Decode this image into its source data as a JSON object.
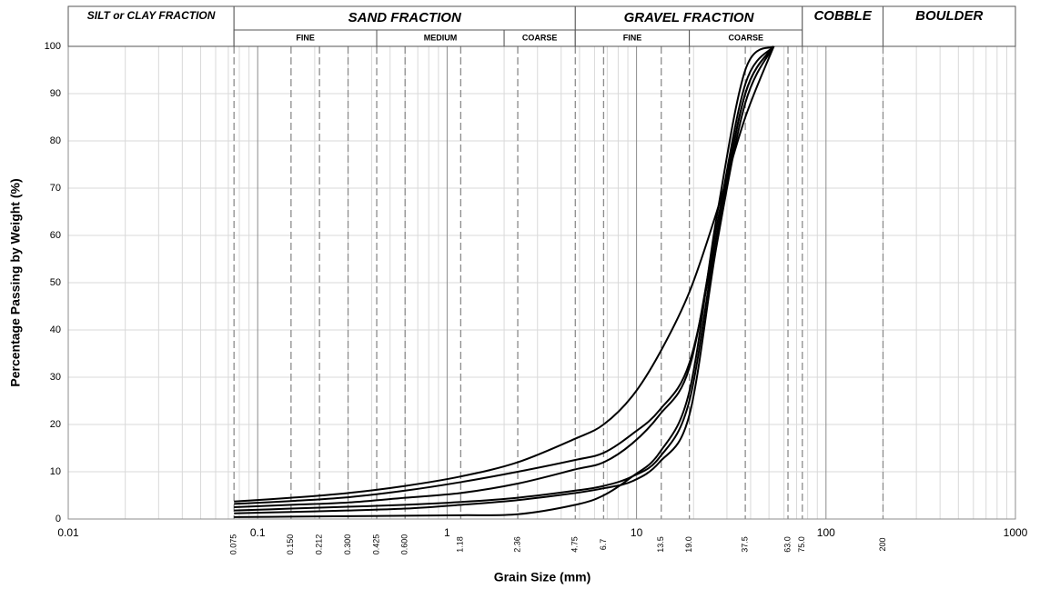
{
  "chart_data": {
    "type": "line",
    "x_label": "Grain Size (mm)",
    "y_label": "Percentage Passing by Weight (%)",
    "log_x": true,
    "grid": true,
    "color": "#000000",
    "xlim": [
      0.01,
      1000
    ],
    "xticks": [
      0.01,
      0.1,
      1,
      10,
      100,
      1000
    ],
    "ylim": [
      0,
      100
    ],
    "yticks": [
      0,
      10,
      20,
      30,
      40,
      50,
      60,
      70,
      80,
      90,
      100
    ],
    "sieve_sizes": [
      0.075,
      {
        "value": 0.15,
        "label": "0.150"
      },
      0.212,
      {
        "value": 0.3,
        "label": "0.300"
      },
      0.425,
      {
        "value": 0.6,
        "label": "0.600"
      },
      1.18,
      2.36,
      4.75,
      6.7,
      13.5,
      {
        "value": 19,
        "label": "19.0"
      },
      37.5,
      {
        "value": 63,
        "label": "63.0"
      },
      {
        "value": 75,
        "label": "75.0"
      },
      200
    ],
    "fractions": [
      {
        "label": "SILT or CLAY FRACTION",
        "range": [
          0.01,
          0.075
        ]
      },
      {
        "label": "SAND FRACTION",
        "range": [
          0.075,
          4.75
        ],
        "parts": [
          {
            "label": "FINE",
            "range": [
              0.075,
              0.425
            ]
          },
          {
            "label": "MEDIUM",
            "range": [
              0.425,
              2
            ]
          },
          {
            "label": "COARSE",
            "range": [
              2,
              4.75
            ]
          }
        ]
      },
      {
        "label": "GRAVEL FRACTION",
        "range": [
          4.75,
          75
        ],
        "parts": [
          {
            "label": "FINE",
            "range": [
              4.75,
              19
            ]
          },
          {
            "label": "COARSE",
            "range": [
              19,
              75
            ]
          }
        ]
      },
      {
        "label": "COBBLE",
        "range": [
          75,
          200
        ]
      },
      {
        "label": "BOULDER",
        "range": [
          200,
          1000
        ]
      }
    ],
    "x": [
      0.075,
      0.15,
      0.3,
      0.6,
      1.18,
      2.36,
      4.75,
      6.7,
      9.5,
      13.2,
      19,
      26.5,
      37.5,
      53
    ],
    "series": [
      {
        "values": [
          3.7,
          4.5,
          5.5,
          7,
          9,
          12,
          17,
          20,
          26,
          35,
          48,
          65,
          85,
          100
        ]
      },
      {
        "values": [
          3.2,
          3.8,
          4.6,
          6,
          7.8,
          10,
          12.5,
          14,
          18,
          23,
          33,
          60,
          90,
          100
        ]
      },
      {
        "values": [
          2.5,
          3,
          3.5,
          4.5,
          5.5,
          7.5,
          10.5,
          12,
          16,
          22,
          32,
          62,
          92,
          100
        ]
      },
      {
        "values": [
          1.8,
          2.2,
          2.6,
          3,
          3.6,
          4.5,
          6,
          7,
          9,
          13,
          25,
          60,
          90,
          100
        ]
      },
      {
        "values": [
          1.2,
          1.5,
          1.8,
          2.2,
          3,
          4,
          5.5,
          6.5,
          8,
          12,
          22,
          58,
          88,
          100
        ]
      },
      {
        "values": [
          0.4,
          0.5,
          0.6,
          0.7,
          0.8,
          1,
          3,
          5,
          9,
          14,
          27,
          64,
          95,
          100
        ]
      }
    ]
  }
}
